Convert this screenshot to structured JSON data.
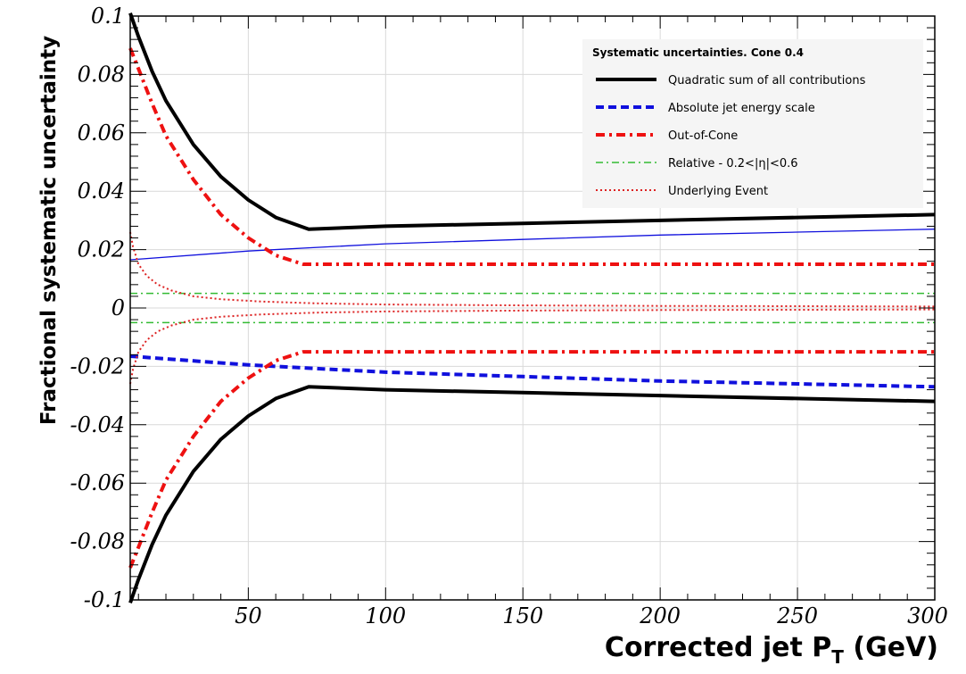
{
  "chart_data": {
    "type": "line",
    "xlabel": "Corrected jet P",
    "xlabel_sub": "T",
    "xlabel_unit": " (GeV)",
    "ylabel": "Fractional systematic uncertainty",
    "xlim": [
      7,
      300
    ],
    "ylim": [
      -0.1,
      0.1
    ],
    "x_ticks": [
      50,
      100,
      150,
      200,
      250,
      300
    ],
    "y_ticks": [
      -0.1,
      -0.08,
      -0.06,
      -0.04,
      -0.02,
      0,
      0.02,
      0.04,
      0.06,
      0.08,
      0.1
    ],
    "y_tick_labels": [
      "-0.1",
      "-0.08",
      "-0.06",
      "-0.04",
      "-0.02",
      "0",
      "0.02",
      "0.04",
      "0.06",
      "0.08",
      "0.1"
    ],
    "x_tick_labels": [
      "50",
      "100",
      "150",
      "200",
      "250",
      "300"
    ],
    "grid": true,
    "legend": {
      "title": "Systematic uncertainties. Cone 0.4",
      "placement": "top-right",
      "entries": [
        {
          "label": "Quadratic sum of all contributions",
          "color": "#000000",
          "style": "solid-thick"
        },
        {
          "label": "Absolute jet energy scale",
          "color": "#1010dd",
          "style": "dashed"
        },
        {
          "label": "Out-of-Cone",
          "color": "#ee1111",
          "style": "dashdot"
        },
        {
          "label": "Relative - 0.2<|η|<0.6",
          "color": "#33bb33",
          "style": "dashdot-thin"
        },
        {
          "label": "Underlying Event",
          "color": "#dd2222",
          "style": "dotted"
        }
      ]
    },
    "series": [
      {
        "name": "Quadratic sum of all contributions",
        "color": "#000000",
        "style": "solid-thick",
        "x": [
          7,
          10,
          15,
          20,
          30,
          40,
          50,
          60,
          72,
          100,
          150,
          200,
          250,
          300
        ],
        "y": [
          0.101,
          0.093,
          0.081,
          0.071,
          0.056,
          0.045,
          0.037,
          0.031,
          0.027,
          0.028,
          0.029,
          0.03,
          0.031,
          0.032
        ]
      },
      {
        "name": "Quadratic sum of all contributions (lower)",
        "color": "#000000",
        "style": "solid-thick",
        "x": [
          7,
          10,
          15,
          20,
          30,
          40,
          50,
          60,
          72,
          100,
          150,
          200,
          250,
          300
        ],
        "y": [
          -0.101,
          -0.093,
          -0.081,
          -0.071,
          -0.056,
          -0.045,
          -0.037,
          -0.031,
          -0.027,
          -0.028,
          -0.029,
          -0.03,
          -0.031,
          -0.032
        ]
      },
      {
        "name": "Absolute jet energy scale (upper)",
        "color": "#1010dd",
        "style": "solid-thin",
        "x": [
          7,
          50,
          100,
          150,
          200,
          250,
          300
        ],
        "y": [
          0.0165,
          0.0195,
          0.022,
          0.0235,
          0.025,
          0.026,
          0.027
        ]
      },
      {
        "name": "Absolute jet energy scale",
        "color": "#1010dd",
        "style": "dashed",
        "x": [
          7,
          50,
          100,
          150,
          200,
          250,
          300
        ],
        "y": [
          -0.0165,
          -0.0195,
          -0.022,
          -0.0235,
          -0.025,
          -0.026,
          -0.027
        ]
      },
      {
        "name": "Out-of-Cone",
        "color": "#ee1111",
        "style": "dashdot",
        "x": [
          7,
          10,
          15,
          20,
          30,
          40,
          50,
          60,
          70,
          300
        ],
        "y": [
          0.089,
          0.082,
          0.07,
          0.059,
          0.044,
          0.032,
          0.024,
          0.018,
          0.015,
          0.015
        ]
      },
      {
        "name": "Out-of-Cone (lower)",
        "color": "#ee1111",
        "style": "dashdot",
        "x": [
          7,
          10,
          15,
          20,
          30,
          40,
          50,
          60,
          70,
          300
        ],
        "y": [
          -0.089,
          -0.082,
          -0.07,
          -0.059,
          -0.044,
          -0.032,
          -0.024,
          -0.018,
          -0.015,
          -0.015
        ]
      },
      {
        "name": "Relative - 0.2<|η|<0.6",
        "color": "#33bb33",
        "style": "dashdot-thin",
        "x": [
          7,
          300
        ],
        "y": [
          0.005,
          0.005
        ]
      },
      {
        "name": "Relative - 0.2<|η|<0.6 (lower)",
        "color": "#33bb33",
        "style": "dashdot-thin",
        "x": [
          7,
          300
        ],
        "y": [
          -0.005,
          -0.005
        ]
      },
      {
        "name": "Underlying Event",
        "color": "#dd2222",
        "style": "dotted",
        "x": [
          7,
          8,
          10,
          13,
          17,
          22,
          30,
          40,
          55,
          75,
          100,
          150,
          200,
          250,
          300
        ],
        "y": [
          0.026,
          0.021,
          0.015,
          0.011,
          0.008,
          0.006,
          0.004,
          0.003,
          0.0022,
          0.0016,
          0.0012,
          0.0009,
          0.0007,
          0.0006,
          0.0005
        ]
      },
      {
        "name": "Underlying Event (lower)",
        "color": "#dd2222",
        "style": "dotted",
        "x": [
          7,
          8,
          10,
          13,
          17,
          22,
          30,
          40,
          55,
          75,
          100,
          150,
          200,
          250,
          300
        ],
        "y": [
          -0.026,
          -0.021,
          -0.015,
          -0.011,
          -0.008,
          -0.006,
          -0.004,
          -0.003,
          -0.0022,
          -0.0016,
          -0.0012,
          -0.0009,
          -0.0007,
          -0.0006,
          -0.0005
        ]
      }
    ]
  }
}
